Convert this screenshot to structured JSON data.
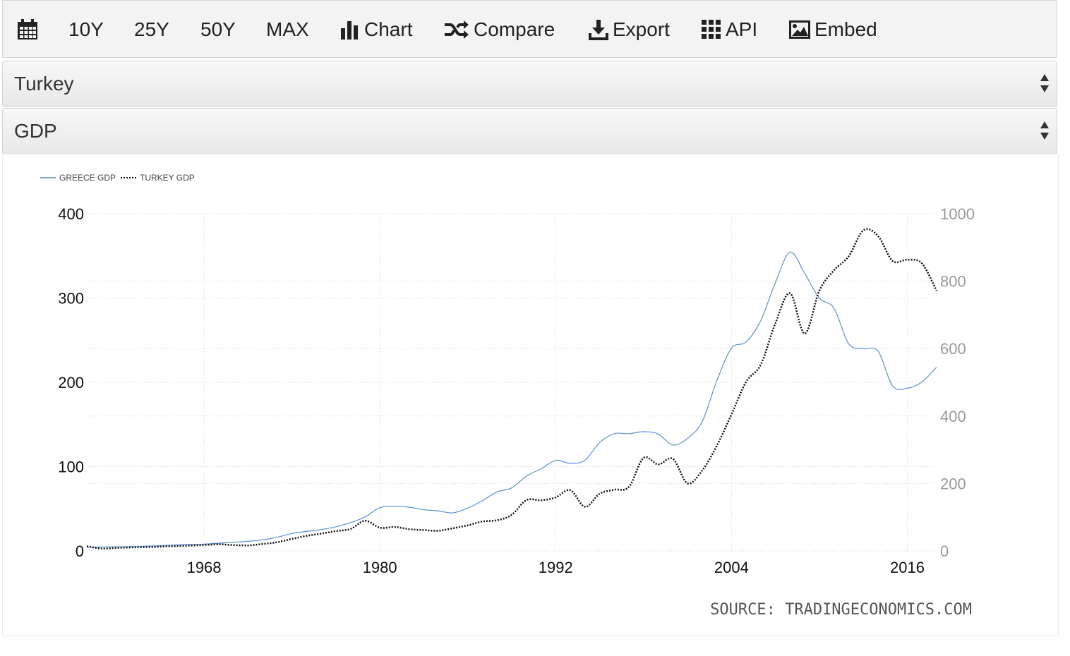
{
  "toolbar": {
    "items": [
      {
        "label": "",
        "icon": "calendar-icon"
      },
      {
        "label": "10Y"
      },
      {
        "label": "25Y"
      },
      {
        "label": "50Y"
      },
      {
        "label": "MAX"
      },
      {
        "label": "Chart",
        "icon": "bar-chart-icon"
      },
      {
        "label": "Compare",
        "icon": "shuffle-icon"
      },
      {
        "label": "Export",
        "icon": "download-icon"
      },
      {
        "label": "API",
        "icon": "grid-icon"
      },
      {
        "label": "Embed",
        "icon": "image-icon"
      }
    ]
  },
  "country_select": {
    "value": "Turkey"
  },
  "indicator_select": {
    "value": "GDP"
  },
  "source_text": "SOURCE: TRADINGECONOMICS.COM",
  "colors": {
    "greece": "#5b8fd6",
    "turkey": "#111111"
  },
  "chart_data": {
    "type": "line",
    "title": "",
    "legend": {
      "placement": "top-left",
      "entries": [
        "GREECE GDP",
        "TURKEY GDP"
      ]
    },
    "x_ticks": [
      "1968",
      "1980",
      "1992",
      "2004",
      "2016"
    ],
    "x_range": [
      1960,
      2018
    ],
    "y_left": {
      "range": [
        0,
        400
      ],
      "ticks": [
        "0",
        "100",
        "200",
        "300",
        "400"
      ]
    },
    "y_right": {
      "range": [
        0,
        1000
      ],
      "ticks": [
        "0",
        "200",
        "400",
        "600",
        "800",
        "1000"
      ]
    },
    "grid": true,
    "series": [
      {
        "name": "GREECE GDP",
        "axis": "left",
        "style": "solid",
        "x": [
          1960,
          1961,
          1962,
          1963,
          1964,
          1965,
          1966,
          1967,
          1968,
          1969,
          1970,
          1971,
          1972,
          1973,
          1974,
          1975,
          1976,
          1977,
          1978,
          1979,
          1980,
          1981,
          1982,
          1983,
          1984,
          1985,
          1986,
          1987,
          1988,
          1989,
          1990,
          1991,
          1992,
          1993,
          1994,
          1995,
          1996,
          1997,
          1998,
          1999,
          2000,
          2001,
          2002,
          2003,
          2004,
          2005,
          2006,
          2007,
          2008,
          2009,
          2010,
          2011,
          2012,
          2013,
          2014,
          2015,
          2016,
          2017,
          2018
        ],
        "values": [
          4.3,
          4.6,
          4.8,
          5.3,
          5.7,
          6.3,
          7.0,
          7.6,
          8.1,
          9.1,
          10.3,
          11.4,
          13.1,
          16.2,
          20.7,
          23.1,
          25.4,
          28.6,
          33.5,
          40.4,
          51.3,
          53.0,
          51.8,
          48.9,
          47.4,
          45.2,
          50.8,
          59.5,
          70.0,
          74.8,
          88.7,
          97.4,
          107.3,
          104.0,
          107.5,
          128.6,
          139.1,
          139.0,
          141.4,
          138.6,
          125.6,
          133.5,
          153.4,
          201.9,
          240.5,
          247.9,
          273.4,
          318.5,
          354.5,
          329.0,
          299.9,
          287.8,
          245.7,
          239.9,
          237.0,
          195.7,
          193.0,
          200.3,
          218.0
        ]
      },
      {
        "name": "TURKEY GDP",
        "axis": "right",
        "style": "dotted",
        "x": [
          1960,
          1961,
          1962,
          1963,
          1964,
          1965,
          1966,
          1967,
          1968,
          1969,
          1970,
          1971,
          1972,
          1973,
          1974,
          1975,
          1976,
          1977,
          1978,
          1979,
          1980,
          1981,
          1982,
          1983,
          1984,
          1985,
          1986,
          1987,
          1988,
          1989,
          1990,
          1991,
          1992,
          1993,
          1994,
          1995,
          1996,
          1997,
          1998,
          1999,
          2000,
          2001,
          2002,
          2003,
          2004,
          2005,
          2006,
          2007,
          2008,
          2009,
          2010,
          2011,
          2012,
          2013,
          2014,
          2015,
          2016,
          2017,
          2018
        ],
        "values": [
          13.99,
          7.0,
          8.9,
          10.3,
          11.2,
          12.4,
          14.1,
          15.7,
          17.5,
          19.5,
          17.3,
          16.4,
          20.4,
          25.7,
          35.6,
          44.6,
          51.3,
          58.7,
          65.1,
          89.4,
          68.8,
          71.0,
          64.5,
          61.7,
          59.9,
          67.2,
          75.7,
          87.2,
          90.9,
          107.1,
          150.7,
          150.0,
          158.5,
          180.2,
          130.7,
          169.5,
          181.5,
          189.8,
          275.9,
          256.4,
          273.1,
          200.3,
          238.4,
          311.8,
          404.8,
          501.4,
          552.5,
          675.8,
          764.3,
          644.6,
          771.9,
          832.5,
          873.7,
          950.6,
          934.2,
          859.8,
          863.7,
          852.7,
          771.4
        ]
      }
    ]
  }
}
